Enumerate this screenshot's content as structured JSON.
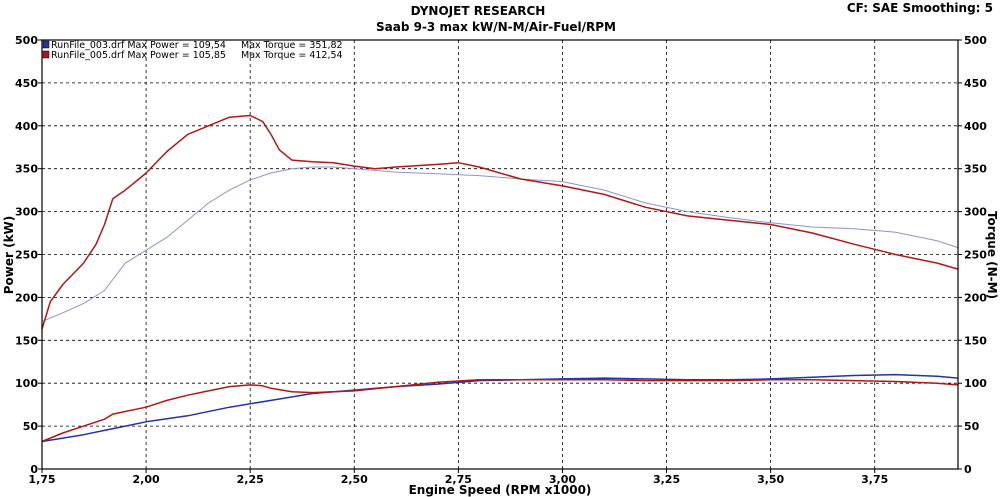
{
  "header": {
    "title": "DYNOJET RESEARCH",
    "subtitle": "Saab 9-3 max kW/N-M/Air-Fuel/RPM",
    "corner": "CF: SAE  Smoothing: 5"
  },
  "legend": [
    {
      "text": "RunFile_003.drf Max Power = 109,54     Max Torque = 351,82",
      "color": "#2233aa"
    },
    {
      "text": "RunFile_005.drf Max Power = 105,85     Max Torque = 412,54",
      "color": "#b01818"
    }
  ],
  "chart_data": {
    "type": "line",
    "title": "Saab 9-3 max kW/N-M/Air-Fuel/RPM",
    "xlabel": "Engine Speed (RPM x1000)",
    "ylabel_left": "Power (kW)",
    "ylabel_right": "Torque (N-M)",
    "xlim": [
      1.75,
      3.95
    ],
    "ylim": [
      0,
      500
    ],
    "x_ticks": [
      "1,75",
      "2,00",
      "2,25",
      "2,50",
      "2,75",
      "3,00",
      "3,25",
      "3,50",
      "3,75"
    ],
    "y_ticks": [
      "0",
      "50",
      "100",
      "150",
      "200",
      "250",
      "300",
      "350",
      "400",
      "450",
      "500"
    ],
    "grid": true,
    "legend_position": "top-left",
    "series": [
      {
        "name": "RunFile_003.drf",
        "quantity": "Torque (N-M)",
        "color": "#8a95cc",
        "x": [
          1.75,
          1.8,
          1.85,
          1.9,
          1.95,
          2.0,
          2.05,
          2.1,
          2.15,
          2.2,
          2.25,
          2.3,
          2.35,
          2.4,
          2.45,
          2.5,
          2.6,
          2.7,
          2.8,
          2.9,
          3.0,
          3.1,
          3.2,
          3.3,
          3.4,
          3.5,
          3.6,
          3.7,
          3.8,
          3.9,
          3.95
        ],
        "y": [
          172,
          182,
          193,
          208,
          240,
          255,
          270,
          290,
          310,
          325,
          337,
          345,
          350,
          352,
          352,
          350,
          346,
          344,
          342,
          338,
          335,
          325,
          310,
          300,
          293,
          287,
          282,
          280,
          276,
          266,
          258
        ]
      },
      {
        "name": "RunFile_005.drf",
        "quantity": "Torque (N-M)",
        "color": "#b01818",
        "x": [
          1.75,
          1.77,
          1.8,
          1.85,
          1.88,
          1.9,
          1.92,
          1.95,
          2.0,
          2.05,
          2.1,
          2.15,
          2.2,
          2.25,
          2.28,
          2.3,
          2.32,
          2.35,
          2.4,
          2.45,
          2.5,
          2.55,
          2.6,
          2.7,
          2.75,
          2.8,
          2.9,
          3.0,
          3.1,
          3.2,
          3.3,
          3.4,
          3.5,
          3.6,
          3.7,
          3.8,
          3.9,
          3.95
        ],
        "y": [
          163,
          195,
          215,
          240,
          262,
          285,
          315,
          325,
          345,
          370,
          390,
          400,
          410,
          412,
          405,
          390,
          372,
          360,
          358,
          357,
          353,
          350,
          352,
          355,
          357,
          352,
          338,
          330,
          320,
          305,
          295,
          290,
          285,
          275,
          262,
          250,
          240,
          233
        ]
      },
      {
        "name": "RunFile_003.drf",
        "quantity": "Power (kW)",
        "color": "#2233aa",
        "x": [
          1.75,
          1.8,
          1.85,
          1.9,
          1.95,
          2.0,
          2.1,
          2.2,
          2.3,
          2.4,
          2.5,
          2.6,
          2.7,
          2.8,
          2.9,
          3.0,
          3.1,
          3.2,
          3.3,
          3.4,
          3.5,
          3.6,
          3.7,
          3.8,
          3.9,
          3.95
        ],
        "y": [
          32,
          36,
          40,
          45,
          50,
          55,
          62,
          72,
          80,
          88,
          92,
          96,
          99,
          103,
          104,
          105,
          106,
          105,
          104,
          104,
          105,
          107,
          109,
          110,
          108,
          106
        ]
      },
      {
        "name": "RunFile_005.drf",
        "quantity": "Power (kW)",
        "color": "#b01818",
        "x": [
          1.75,
          1.8,
          1.85,
          1.9,
          1.92,
          1.95,
          2.0,
          2.05,
          2.1,
          2.15,
          2.2,
          2.25,
          2.28,
          2.3,
          2.35,
          2.4,
          2.5,
          2.6,
          2.7,
          2.8,
          2.9,
          3.0,
          3.1,
          3.2,
          3.3,
          3.4,
          3.5,
          3.6,
          3.7,
          3.8,
          3.9,
          3.95
        ],
        "y": [
          32,
          42,
          50,
          58,
          64,
          67,
          72,
          80,
          86,
          91,
          96,
          98,
          97,
          94,
          90,
          89,
          91,
          96,
          101,
          104,
          104,
          104,
          104,
          103,
          103,
          103,
          104,
          104,
          103,
          102,
          100,
          98
        ]
      }
    ]
  }
}
